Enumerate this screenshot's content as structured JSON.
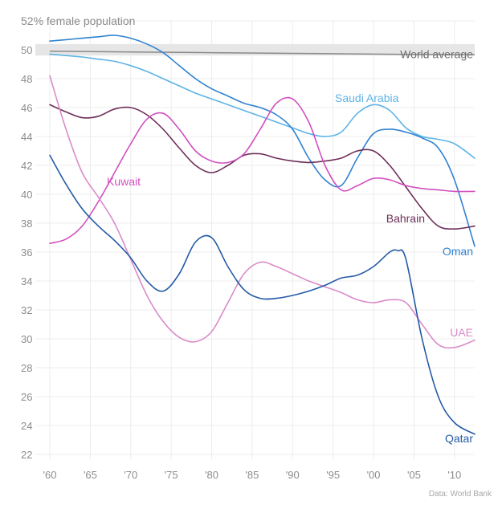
{
  "chart_data": {
    "type": "line",
    "ylabel": "% female population",
    "top_tick_label": "52% female population",
    "ylim": [
      22,
      52
    ],
    "xlim": [
      1960,
      2012.5
    ],
    "y_ticks": [
      22,
      24,
      26,
      28,
      30,
      32,
      34,
      36,
      38,
      40,
      42,
      44,
      46,
      48,
      50
    ],
    "x_ticks": [
      {
        "value": 1960,
        "label": "'60"
      },
      {
        "value": 1965,
        "label": "'65"
      },
      {
        "value": 1970,
        "label": "'70"
      },
      {
        "value": 1975,
        "label": "'75"
      },
      {
        "value": 1980,
        "label": "'80"
      },
      {
        "value": 1985,
        "label": "'85"
      },
      {
        "value": 1990,
        "label": "'90"
      },
      {
        "value": 1995,
        "label": "'95"
      },
      {
        "value": 2000,
        "label": "'00"
      },
      {
        "value": 2005,
        "label": "'05"
      },
      {
        "value": 2010,
        "label": "'10"
      }
    ],
    "grid": true,
    "source": "Data: World Bank",
    "band": {
      "name": "World average",
      "color": "#8a8a8a",
      "band_color": "#e6e6e6",
      "low": 49.6,
      "high": 50.4,
      "x": [
        1960,
        1970,
        1980,
        1990,
        2000,
        2012.5
      ],
      "values": [
        49.9,
        49.85,
        49.8,
        49.75,
        49.7,
        49.65
      ]
    },
    "series": [
      {
        "name": "Saudi Arabia",
        "color": "#5db3e6",
        "x": [
          1960,
          1962,
          1964,
          1966,
          1968,
          1970,
          1972,
          1974,
          1976,
          1978,
          1980,
          1982,
          1984,
          1986,
          1988,
          1990,
          1992,
          1994,
          1996,
          1998,
          2000,
          2002,
          2004,
          2006,
          2008,
          2010,
          2012.5
        ],
        "values": [
          49.7,
          49.6,
          49.5,
          49.35,
          49.2,
          48.9,
          48.5,
          48.0,
          47.5,
          47.0,
          46.6,
          46.2,
          45.8,
          45.4,
          45.0,
          44.6,
          44.2,
          44.0,
          44.3,
          45.6,
          46.2,
          45.8,
          44.6,
          44.0,
          43.8,
          43.5,
          42.5
        ]
      },
      {
        "name": "Oman",
        "color": "#2f82d1",
        "x": [
          1960,
          1962,
          1964,
          1966,
          1968,
          1970,
          1972,
          1974,
          1976,
          1978,
          1980,
          1982,
          1984,
          1986,
          1988,
          1990,
          1992,
          1994,
          1996,
          1998,
          2000,
          2002,
          2004,
          2006,
          2008,
          2010,
          2012.5
        ],
        "values": [
          50.6,
          50.7,
          50.8,
          50.9,
          51.0,
          50.8,
          50.4,
          49.8,
          48.9,
          48.0,
          47.3,
          46.8,
          46.3,
          46.0,
          45.5,
          44.5,
          42.5,
          41.0,
          40.6,
          42.5,
          44.2,
          44.5,
          44.3,
          43.9,
          43.2,
          41.0,
          36.4
        ]
      },
      {
        "name": "Bahrain",
        "color": "#6e2e57",
        "x": [
          1960,
          1962,
          1964,
          1966,
          1968,
          1970,
          1972,
          1974,
          1976,
          1978,
          1980,
          1982,
          1984,
          1986,
          1988,
          1990,
          1992,
          1994,
          1996,
          1998,
          2000,
          2002,
          2004,
          2006,
          2008,
          2010,
          2012.5
        ],
        "values": [
          46.2,
          45.7,
          45.3,
          45.4,
          45.9,
          46.0,
          45.5,
          44.5,
          43.2,
          42.0,
          41.5,
          42.0,
          42.7,
          42.8,
          42.5,
          42.3,
          42.2,
          42.3,
          42.5,
          43.0,
          43.0,
          42.0,
          40.5,
          39.0,
          37.8,
          37.6,
          37.8
        ]
      },
      {
        "name": "Kuwait",
        "color": "#d24fc0",
        "x": [
          1960,
          1962,
          1964,
          1966,
          1968,
          1970,
          1972,
          1974,
          1976,
          1978,
          1980,
          1982,
          1984,
          1986,
          1988,
          1990,
          1992,
          1994,
          1996,
          1998,
          2000,
          2002,
          2004,
          2006,
          2008,
          2010,
          2012.5
        ],
        "values": [
          36.6,
          36.9,
          37.8,
          39.5,
          41.5,
          43.5,
          45.2,
          45.6,
          44.5,
          43.0,
          42.3,
          42.2,
          42.8,
          44.5,
          46.3,
          46.6,
          45.0,
          42.0,
          40.3,
          40.6,
          41.1,
          41.0,
          40.6,
          40.4,
          40.3,
          40.2,
          40.2
        ]
      },
      {
        "name": "UAE",
        "color": "#d98cc8",
        "x": [
          1960,
          1962,
          1964,
          1966,
          1968,
          1970,
          1972,
          1974,
          1976,
          1978,
          1980,
          1982,
          1984,
          1986,
          1988,
          1990,
          1992,
          1994,
          1996,
          1998,
          2000,
          2002,
          2004,
          2006,
          2008,
          2010,
          2012.5
        ],
        "values": [
          48.2,
          44.5,
          41.5,
          39.8,
          38.0,
          35.5,
          33.0,
          31.2,
          30.1,
          29.8,
          30.5,
          32.5,
          34.5,
          35.3,
          35.0,
          34.5,
          34.0,
          33.6,
          33.2,
          32.7,
          32.5,
          32.7,
          32.5,
          31.0,
          29.6,
          29.4,
          29.9
        ]
      },
      {
        "name": "Qatar",
        "color": "#245aa6",
        "x": [
          1960,
          1962,
          1964,
          1966,
          1968,
          1970,
          1972,
          1974,
          1976,
          1978,
          1980,
          1982,
          1984,
          1986,
          1988,
          1990,
          1992,
          1994,
          1996,
          1998,
          2000,
          2002,
          2003,
          2004,
          2006,
          2008,
          2010,
          2012.5
        ],
        "values": [
          42.7,
          40.7,
          39.0,
          37.8,
          36.8,
          35.6,
          34.0,
          33.3,
          34.5,
          36.7,
          37.0,
          35.0,
          33.4,
          32.8,
          32.8,
          33.0,
          33.3,
          33.7,
          34.2,
          34.4,
          35.0,
          36.0,
          36.1,
          35.5,
          30.0,
          26.0,
          24.2,
          23.4
        ]
      }
    ]
  }
}
